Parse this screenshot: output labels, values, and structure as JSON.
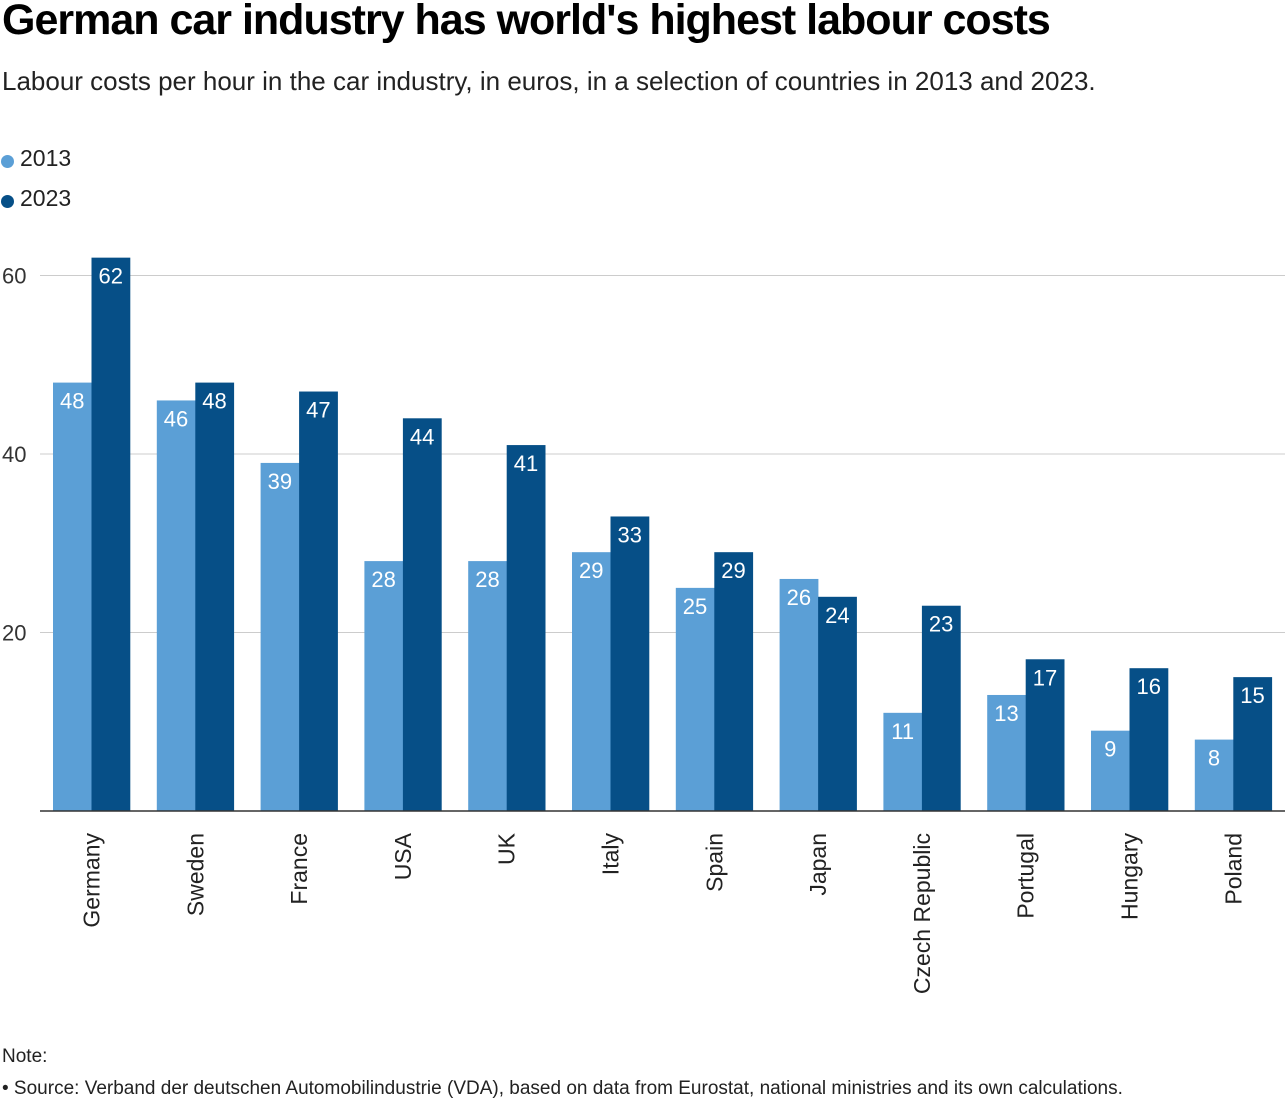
{
  "header": {
    "title": "German car industry has world's highest labour costs",
    "subtitle": "Labour costs per hour in the car industry, in euros, in a selection of countries in 2013 and 2023."
  },
  "footer": {
    "note": "Note:",
    "source": "• Source: Verband der deutschen Automobilindustrie (VDA), based on data from Eurostat, national ministries and its own calculations."
  },
  "colors": {
    "series_2013": "#5b9fd6",
    "series_2023": "#064f87",
    "gridline": "#cccccc",
    "axis": "#333333"
  },
  "chart_data": {
    "type": "bar",
    "title": "German car industry has world's highest labour costs",
    "xlabel": "",
    "ylabel": "",
    "ylim": [
      0,
      62
    ],
    "yticks": [
      20,
      40,
      60
    ],
    "grid": true,
    "legend_position": "top-left",
    "categories": [
      "Germany",
      "Sweden",
      "France",
      "USA",
      "UK",
      "Italy",
      "Spain",
      "Japan",
      "Czech Republic",
      "Portugal",
      "Hungary",
      "Poland"
    ],
    "series": [
      {
        "name": "2013",
        "values": [
          48,
          46,
          39,
          28,
          28,
          29,
          25,
          26,
          11,
          13,
          9,
          8
        ]
      },
      {
        "name": "2023",
        "values": [
          62,
          48,
          47,
          44,
          41,
          33,
          29,
          24,
          23,
          17,
          16,
          15
        ]
      }
    ]
  }
}
